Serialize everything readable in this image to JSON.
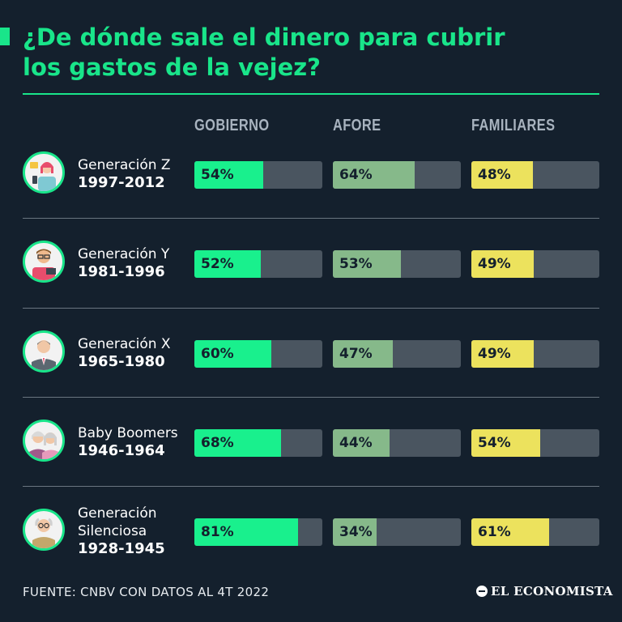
{
  "title": "¿De dónde sale el dinero para cubrir\nlos gastos de la vejez?",
  "footer": {
    "source": "FUENTE: CNBV CON DATOS AL 4T 2022",
    "brand": "EL ECONOMISTA"
  },
  "colors": {
    "background": "#14202d",
    "accent": "#19e58a",
    "gobierno": "#19f08d",
    "afore": "#86b98a",
    "familiares": "#ece25d",
    "track": "#4a5560"
  },
  "chart_data": {
    "type": "bar",
    "orientation": "horizontal",
    "xlim": [
      0,
      100
    ],
    "categories": [
      {
        "name": "Generación Z",
        "years": "1997-2012",
        "icon": "young-woman-phone-icon"
      },
      {
        "name": "Generación Y",
        "years": "1981-1996",
        "icon": "man-glasses-laptop-icon"
      },
      {
        "name": "Generación X",
        "years": "1965-1980",
        "icon": "bald-man-suit-icon"
      },
      {
        "name": "Baby Boomers",
        "years": "1946-1964",
        "icon": "older-couple-icon"
      },
      {
        "name": "Generación Silenciosa",
        "years": "1928-1945",
        "icon": "elderly-man-glasses-icon"
      }
    ],
    "series": [
      {
        "name": "GOBIERNO",
        "values": [
          54,
          52,
          60,
          68,
          81
        ],
        "labels": [
          "54%",
          "52%",
          "60%",
          "68%",
          "81%"
        ]
      },
      {
        "name": "AFORE",
        "values": [
          64,
          53,
          47,
          44,
          34
        ],
        "labels": [
          "64%",
          "53%",
          "47%",
          "44%",
          "34%"
        ]
      },
      {
        "name": "FAMILIARES",
        "values": [
          48,
          49,
          49,
          54,
          61
        ],
        "labels": [
          "48%",
          "49%",
          "49%",
          "54%",
          "61%"
        ]
      }
    ]
  }
}
